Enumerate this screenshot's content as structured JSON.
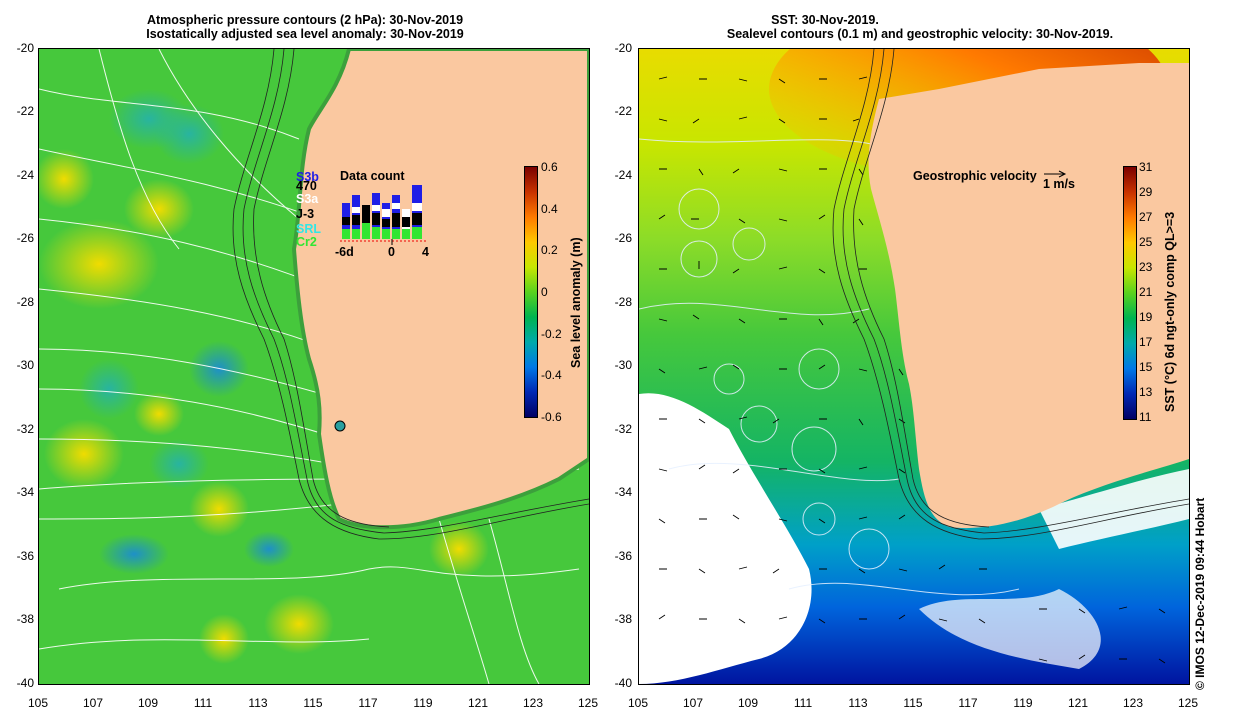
{
  "left_panel": {
    "title_line1": "Atmospheric pressure contours (2 hPa): 30-Nov-2019",
    "title_line2": "Isostatically adjusted sea level anomaly: 30-Nov-2019",
    "y_ticks": [
      "-20",
      "-22",
      "-24",
      "-26",
      "-28",
      "-30",
      "-32",
      "-34",
      "-36",
      "-38",
      "-40"
    ],
    "x_ticks": [
      "105",
      "107",
      "109",
      "111",
      "113",
      "115",
      "117",
      "119",
      "121",
      "123",
      "125"
    ],
    "colorbar": {
      "label": "Sea level anomaly (m)",
      "ticks": [
        "0.6",
        "0.4",
        "0.2",
        "0",
        "-0.2",
        "-0.4",
        "-0.6"
      ],
      "colors": [
        "#7a0000",
        "#c83200",
        "#ff7a00",
        "#ffc800",
        "#c8e600",
        "#5ad21e",
        "#00b450",
        "#00aaaa",
        "#0078e6",
        "#0028b4",
        "#000064"
      ]
    },
    "data_count": {
      "title": "Data count",
      "satellites": [
        {
          "name": "S3b",
          "color": "#1e1ee6"
        },
        {
          "name": "470",
          "color": "#000000"
        },
        {
          "name": "S3a",
          "color": "#ffffff"
        },
        {
          "name": "J-3",
          "color": "#000000"
        },
        {
          "name": "SRL",
          "color": "#32e6e6"
        },
        {
          "name": "Cr2",
          "color": "#32e632"
        }
      ],
      "x_ticks": [
        "-6d",
        "0",
        "4"
      ]
    }
  },
  "right_panel": {
    "title_line1": "SST: 30-Nov-2019.",
    "title_line2": "Sealevel contours (0.1 m) and geostrophic velocity: 30-Nov-2019.",
    "y_ticks": [
      "-20",
      "-22",
      "-24",
      "-26",
      "-28",
      "-30",
      "-32",
      "-34",
      "-36",
      "-38",
      "-40"
    ],
    "x_ticks": [
      "105",
      "107",
      "109",
      "111",
      "113",
      "115",
      "117",
      "119",
      "121",
      "123",
      "125"
    ],
    "velocity_legend": "Geostrophic velocity",
    "velocity_scale": "1 m/s",
    "colorbar": {
      "label": "SST (°C) 6d ngt-only comp QL>=3",
      "ticks": [
        "31",
        "29",
        "27",
        "25",
        "23",
        "21",
        "19",
        "17",
        "15",
        "13",
        "11"
      ],
      "colors": [
        "#7a0000",
        "#c83200",
        "#ff7a00",
        "#ffc800",
        "#c8e600",
        "#5ad21e",
        "#00b450",
        "#00aaaa",
        "#0078e6",
        "#0028b4",
        "#000064"
      ]
    }
  },
  "credit": "© IMOS 12-Dec-2019 09:44 Hobart",
  "colors": {
    "land": "#fac8a0",
    "ocean_green": "#3cc83c",
    "cloud": "#ffffff"
  }
}
